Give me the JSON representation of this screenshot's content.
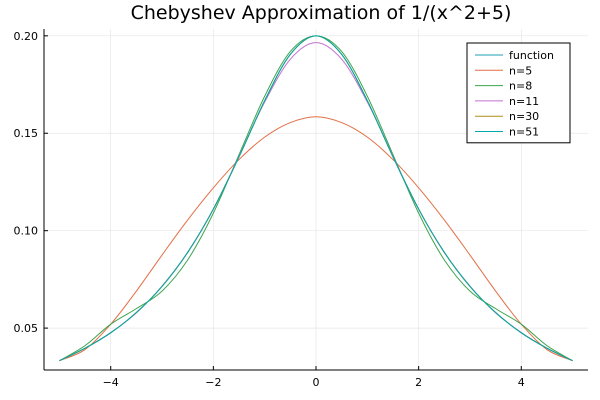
{
  "chart_data": {
    "type": "line",
    "title": "Chebyshev Approximation of 1/(x^2+5)",
    "xlabel": "",
    "ylabel": "",
    "xlim": [
      -5.3,
      5.3
    ],
    "ylim": [
      0.0285,
      0.2035
    ],
    "xticks": [
      -4,
      -2,
      0,
      2,
      4
    ],
    "xtick_labels": [
      "−4",
      "−2",
      "0",
      "2",
      "4"
    ],
    "yticks": [
      0.05,
      0.1,
      0.15,
      0.2
    ],
    "ytick_labels": [
      "0.05",
      "0.10",
      "0.15",
      "0.20"
    ],
    "grid": true,
    "legend_position": "top-right",
    "x": [
      -5,
      -4.5,
      -4,
      -3.5,
      -3,
      -2.5,
      -2,
      -1.5,
      -1,
      -0.5,
      0,
      0.5,
      1,
      1.5,
      2,
      2.5,
      3,
      3.5,
      4,
      4.5,
      5
    ],
    "series": [
      {
        "name": "function",
        "color": "#1f9fb4",
        "values": [
          0.0333,
          0.0397,
          0.0476,
          0.058,
          0.0714,
          0.0889,
          0.1111,
          0.1379,
          0.1667,
          0.1905,
          0.2,
          0.1905,
          0.1667,
          0.1379,
          0.1111,
          0.0889,
          0.0714,
          0.058,
          0.0476,
          0.0397,
          0.0333
        ]
      },
      {
        "name": "n=5",
        "color": "#e26f46",
        "values": [
          0.0333,
          0.039,
          0.052,
          0.069,
          0.0875,
          0.1055,
          0.122,
          0.1365,
          0.148,
          0.1555,
          0.1585,
          0.1555,
          0.148,
          0.1365,
          0.122,
          0.1055,
          0.0875,
          0.069,
          0.052,
          0.039,
          0.0333
        ]
      },
      {
        "name": "n=8",
        "color": "#3da44d",
        "values": [
          0.0333,
          0.041,
          0.052,
          0.06,
          0.069,
          0.085,
          0.109,
          0.139,
          0.169,
          0.192,
          0.2,
          0.192,
          0.169,
          0.139,
          0.109,
          0.085,
          0.069,
          0.06,
          0.052,
          0.041,
          0.0333
        ]
      },
      {
        "name": "n=11",
        "color": "#c271d2",
        "values": [
          0.0333,
          0.0397,
          0.0477,
          0.0578,
          0.0716,
          0.0888,
          0.111,
          0.1382,
          0.166,
          0.188,
          0.1965,
          0.188,
          0.166,
          0.1382,
          0.111,
          0.0888,
          0.0716,
          0.0578,
          0.0477,
          0.0397,
          0.0333
        ]
      },
      {
        "name": "n=30",
        "color": "#ac8d18",
        "values": [
          0.0333,
          0.0397,
          0.0476,
          0.058,
          0.0714,
          0.0889,
          0.1111,
          0.1379,
          0.1667,
          0.1905,
          0.2,
          0.1905,
          0.1667,
          0.1379,
          0.1111,
          0.0889,
          0.0714,
          0.058,
          0.0476,
          0.0397,
          0.0333
        ]
      },
      {
        "name": "n=51",
        "color": "#00a9ad",
        "values": [
          0.0333,
          0.0397,
          0.0476,
          0.058,
          0.0714,
          0.0889,
          0.1111,
          0.1379,
          0.1667,
          0.1905,
          0.2,
          0.1905,
          0.1667,
          0.1379,
          0.1111,
          0.0889,
          0.0714,
          0.058,
          0.0476,
          0.0397,
          0.0333
        ]
      }
    ]
  }
}
